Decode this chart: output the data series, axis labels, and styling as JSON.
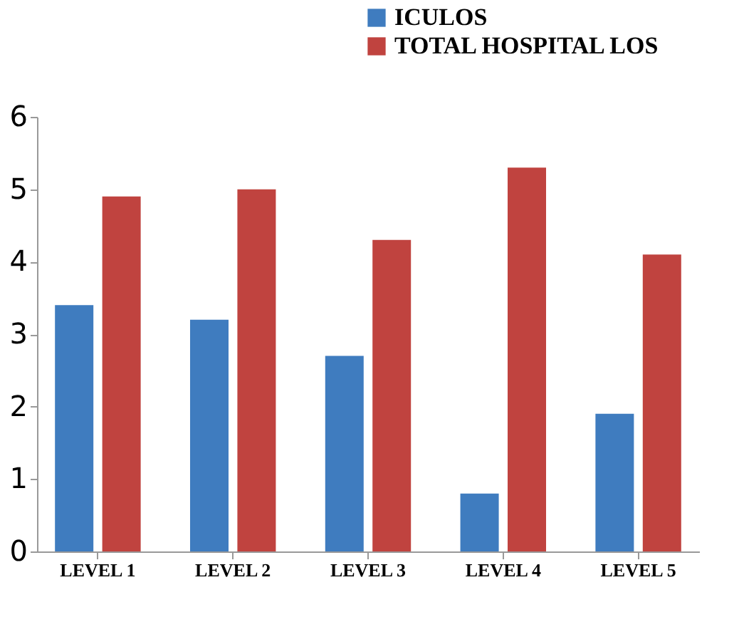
{
  "chart_data": {
    "type": "bar",
    "categories": [
      "LEVEL 1",
      "LEVEL 2",
      "LEVEL 3",
      "LEVEL 4",
      "LEVEL 5"
    ],
    "series": [
      {
        "name": "ICULOS",
        "color": "#3f7cbf",
        "values": [
          3.4,
          3.2,
          2.7,
          0.8,
          1.9
        ]
      },
      {
        "name": "TOTAL HOSPITAL LOS",
        "color": "#c0433f",
        "values": [
          4.9,
          5.0,
          4.3,
          5.3,
          4.1
        ]
      }
    ],
    "ylim": [
      0,
      6
    ],
    "yticks": [
      0,
      1,
      2,
      3,
      4,
      5,
      6
    ],
    "grid": false,
    "legend": "top right"
  }
}
